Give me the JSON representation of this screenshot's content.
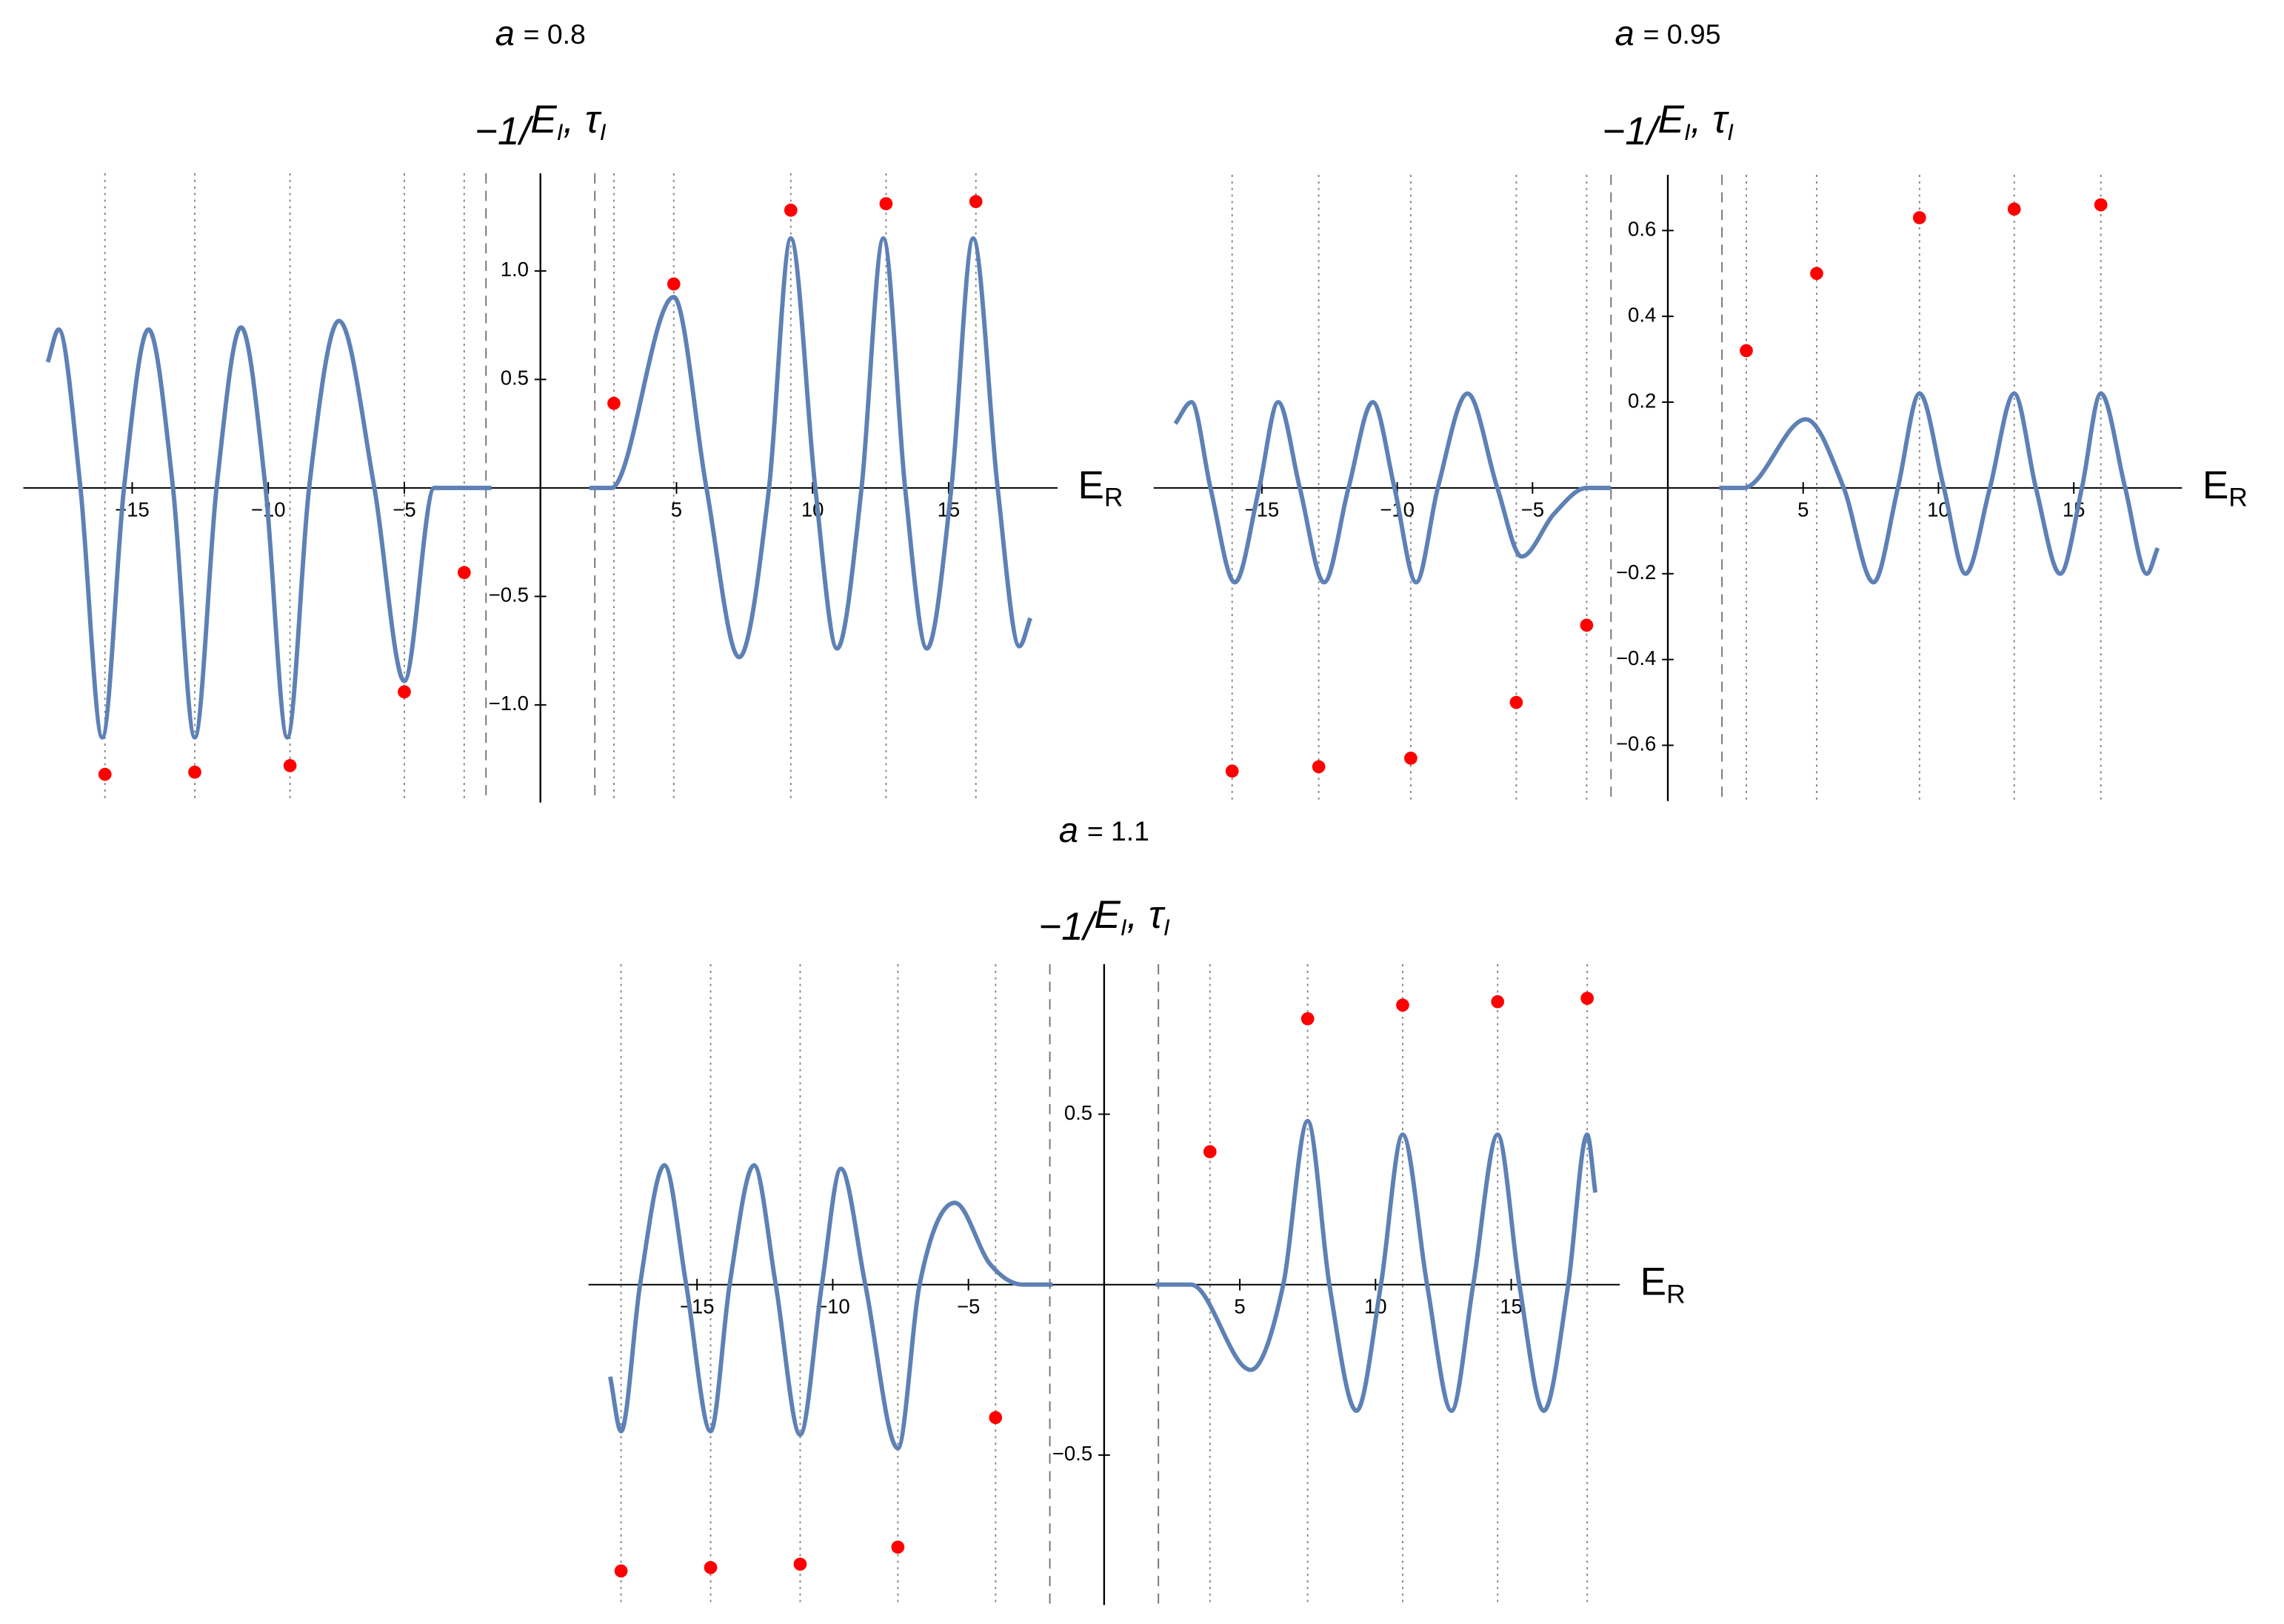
{
  "chart_data": [
    {
      "type": "line",
      "title": [
        "a",
        "= 0.8"
      ],
      "ylabel": [
        "−1/",
        "E",
        "I",
        ",  τ",
        "I"
      ],
      "xlabel": [
        "E",
        "R"
      ],
      "xlim": [
        -19,
        19
      ],
      "ylim": [
        -1.45,
        1.45
      ],
      "xticks": [
        {
          "value": -15,
          "label": "−15"
        },
        {
          "value": -10,
          "label": "−10"
        },
        {
          "value": -5,
          "label": "−5"
        },
        5,
        10,
        15
      ],
      "yticks": [
        {
          "value": -1,
          "label": "−1.0"
        },
        {
          "value": -0.5,
          "label": "−0.5"
        },
        0.5,
        {
          "value": 1,
          "label": "1.0"
        }
      ],
      "asymptotes": [
        -2.0,
        2.0
      ],
      "series": [
        {
          "type": "line",
          "color": "#5e81b5",
          "x": [
            -18.1,
            -17.7,
            -16.9,
            -16.1,
            -15.3,
            -14.4,
            -13.5,
            -12.7,
            -11.9,
            -11.0,
            -10.1,
            -9.3,
            -8.5,
            -7.4,
            -6.1,
            -5.0,
            -3.9,
            -3.2,
            -1.8,
            0,
            1.8,
            2.6,
            4.9,
            6.1,
            7.3,
            8.4,
            9.2,
            10.1,
            10.9,
            11.8,
            12.6,
            13.4,
            14.2,
            15.1,
            15.9,
            16.8,
            17.6,
            18.0
          ],
          "values": [
            0.58,
            0.73,
            0,
            -1.15,
            0,
            0.73,
            0,
            -1.15,
            0,
            0.74,
            0,
            -1.15,
            0,
            0.77,
            0,
            -0.89,
            0,
            0,
            0,
            null,
            0,
            0,
            0.88,
            0,
            -0.78,
            0,
            1.15,
            0,
            -0.74,
            0,
            1.15,
            0,
            -0.74,
            0,
            1.15,
            0,
            -0.73,
            -0.6
          ]
        },
        {
          "type": "scatter",
          "color": "#ff0000",
          "x": [
            -16.0,
            -12.7,
            -9.2,
            -5.0,
            -2.8,
            2.7,
            4.9,
            9.2,
            12.7,
            16.0
          ],
          "values": [
            -1.32,
            -1.31,
            -1.28,
            -0.94,
            -0.39,
            0.39,
            0.94,
            1.28,
            1.31,
            1.32
          ]
        }
      ]
    },
    {
      "type": "line",
      "title": [
        "a",
        "= 0.95"
      ],
      "ylabel": [
        "−1/",
        "E",
        "I",
        ",  τ",
        "I"
      ],
      "xlabel": [
        "E",
        "R"
      ],
      "xlim": [
        -19,
        19
      ],
      "ylim": [
        -0.73,
        0.73
      ],
      "xticks": [
        {
          "value": -15,
          "label": "−15"
        },
        {
          "value": -10,
          "label": "−10"
        },
        {
          "value": -5,
          "label": "−5"
        },
        5,
        10,
        15
      ],
      "yticks": [
        {
          "value": -0.6,
          "label": "−0.6"
        },
        {
          "value": -0.4,
          "label": "−0.4"
        },
        {
          "value": -0.2,
          "label": "−0.2"
        },
        0.2,
        0.4,
        0.6
      ],
      "asymptotes": [
        -2.1,
        2.0
      ],
      "series": [
        {
          "type": "line",
          "color": "#5e81b5",
          "x": [
            -18.2,
            -17.6,
            -16.9,
            -16.0,
            -15.1,
            -14.4,
            -13.6,
            -12.7,
            -11.8,
            -10.9,
            -10.1,
            -9.3,
            -8.5,
            -7.4,
            -6.3,
            -5.4,
            -4.2,
            -3.0,
            -2.1,
            0,
            1.9,
            2.8,
            5.1,
            6.5,
            7.6,
            8.5,
            9.3,
            10.2,
            11.0,
            11.9,
            12.8,
            13.6,
            14.5,
            15.3,
            16.0,
            16.9,
            17.7,
            18.1
          ],
          "values": [
            0.15,
            0.2,
            0,
            -0.22,
            0,
            0.2,
            0,
            -0.22,
            0,
            0.2,
            0,
            -0.22,
            0,
            0.22,
            0,
            -0.16,
            -0.06,
            0,
            0,
            null,
            0,
            0,
            0.16,
            0,
            -0.22,
            0,
            0.22,
            0,
            -0.2,
            0,
            0.22,
            0,
            -0.2,
            0,
            0.22,
            0,
            -0.2,
            -0.14
          ]
        },
        {
          "type": "scatter",
          "color": "#ff0000",
          "x": [
            -16.1,
            -12.9,
            -9.5,
            -5.6,
            -3.0,
            2.9,
            5.5,
            9.3,
            12.8,
            16.0
          ],
          "values": [
            -0.66,
            -0.65,
            -0.63,
            -0.5,
            -0.32,
            0.32,
            0.5,
            0.63,
            0.65,
            0.66
          ]
        }
      ]
    },
    {
      "type": "line",
      "title": [
        "a",
        "= 1.1"
      ],
      "ylabel": [
        "−1/",
        "E",
        "I",
        ",  τ",
        "I"
      ],
      "xlabel": [
        "E",
        "R"
      ],
      "xlim": [
        -19,
        19
      ],
      "ylim": [
        -0.94,
        0.94
      ],
      "xticks": [
        {
          "value": -15,
          "label": "−15"
        },
        {
          "value": -10,
          "label": "−10"
        },
        {
          "value": -5,
          "label": "−5"
        },
        5,
        10,
        15
      ],
      "yticks": [
        {
          "value": -0.5,
          "label": "−0.5"
        },
        0.5
      ],
      "asymptotes": [
        -2.0,
        2.0
      ],
      "series": [
        {
          "type": "line",
          "color": "#5e81b5",
          "x": [
            -18.2,
            -17.8,
            -17.1,
            -16.2,
            -15.4,
            -14.5,
            -13.8,
            -12.9,
            -12.1,
            -11.2,
            -10.4,
            -9.7,
            -8.8,
            -7.6,
            -6.8,
            -5.5,
            -4.2,
            -3.0,
            -1.9,
            0,
            1.9,
            3.2,
            5.4,
            6.6,
            7.5,
            8.3,
            9.3,
            10.2,
            11.0,
            11.9,
            12.8,
            13.6,
            14.5,
            15.3,
            16.2,
            17.1,
            17.8,
            18.1
          ],
          "values": [
            -0.27,
            -0.43,
            0,
            0.35,
            0,
            -0.43,
            0,
            0.35,
            0,
            -0.44,
            0,
            0.34,
            0,
            -0.48,
            0,
            0.24,
            0.06,
            0,
            0,
            null,
            0,
            0,
            -0.25,
            0,
            0.48,
            0,
            -0.37,
            0,
            0.44,
            0,
            -0.37,
            0,
            0.44,
            0,
            -0.37,
            0,
            0.44,
            0.27
          ]
        },
        {
          "type": "scatter",
          "color": "#ff0000",
          "x": [
            -17.8,
            -14.5,
            -11.2,
            -7.6,
            -4.0,
            3.9,
            7.5,
            11.0,
            14.5,
            17.8
          ],
          "values": [
            -0.84,
            -0.83,
            -0.82,
            -0.77,
            -0.39,
            0.39,
            0.78,
            0.82,
            0.83,
            0.84
          ]
        }
      ]
    }
  ]
}
